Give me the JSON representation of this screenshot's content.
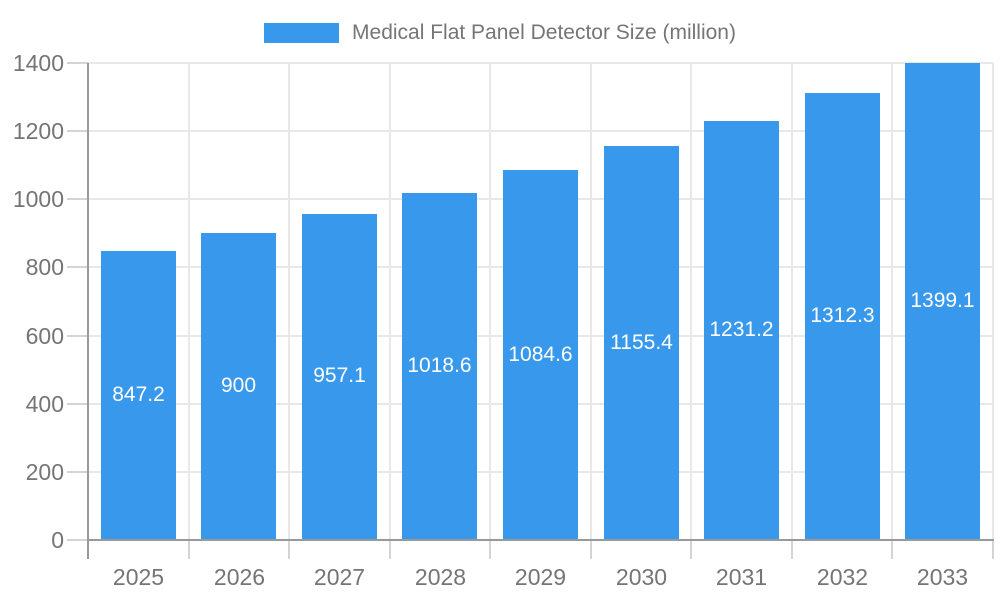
{
  "legend": {
    "label": "Medical Flat Panel Detector Size (million)"
  },
  "chart_data": {
    "type": "bar",
    "title": "Medical Flat Panel Detector Size (million)",
    "categories": [
      "2025",
      "2026",
      "2027",
      "2028",
      "2029",
      "2030",
      "2031",
      "2032",
      "2033"
    ],
    "values": [
      847.2,
      900,
      957.1,
      1018.6,
      1084.6,
      1155.4,
      1231.2,
      1312.3,
      1399.1
    ],
    "bar_labels": [
      "847.2",
      "900",
      "957.1",
      "1018.6",
      "1084.6",
      "1155.4",
      "1231.2",
      "1312.3",
      "1399.1"
    ],
    "xlabel": "",
    "ylabel": "",
    "ylim": [
      0,
      1400
    ],
    "ytick_step": 200,
    "ytick_labels": [
      "0",
      "200",
      "400",
      "600",
      "800",
      "1000",
      "1200",
      "1400"
    ],
    "grid": true,
    "legend_position": "top-center",
    "bar_label_position": "inside-center",
    "colors": {
      "bar": "#3899EC",
      "axis": "#999999",
      "gridline": "#e8e8e8",
      "tick": "#d4d4d4",
      "axis_text": "#757575",
      "bar_label_text": "#ffffff",
      "background": "#ffffff"
    }
  }
}
